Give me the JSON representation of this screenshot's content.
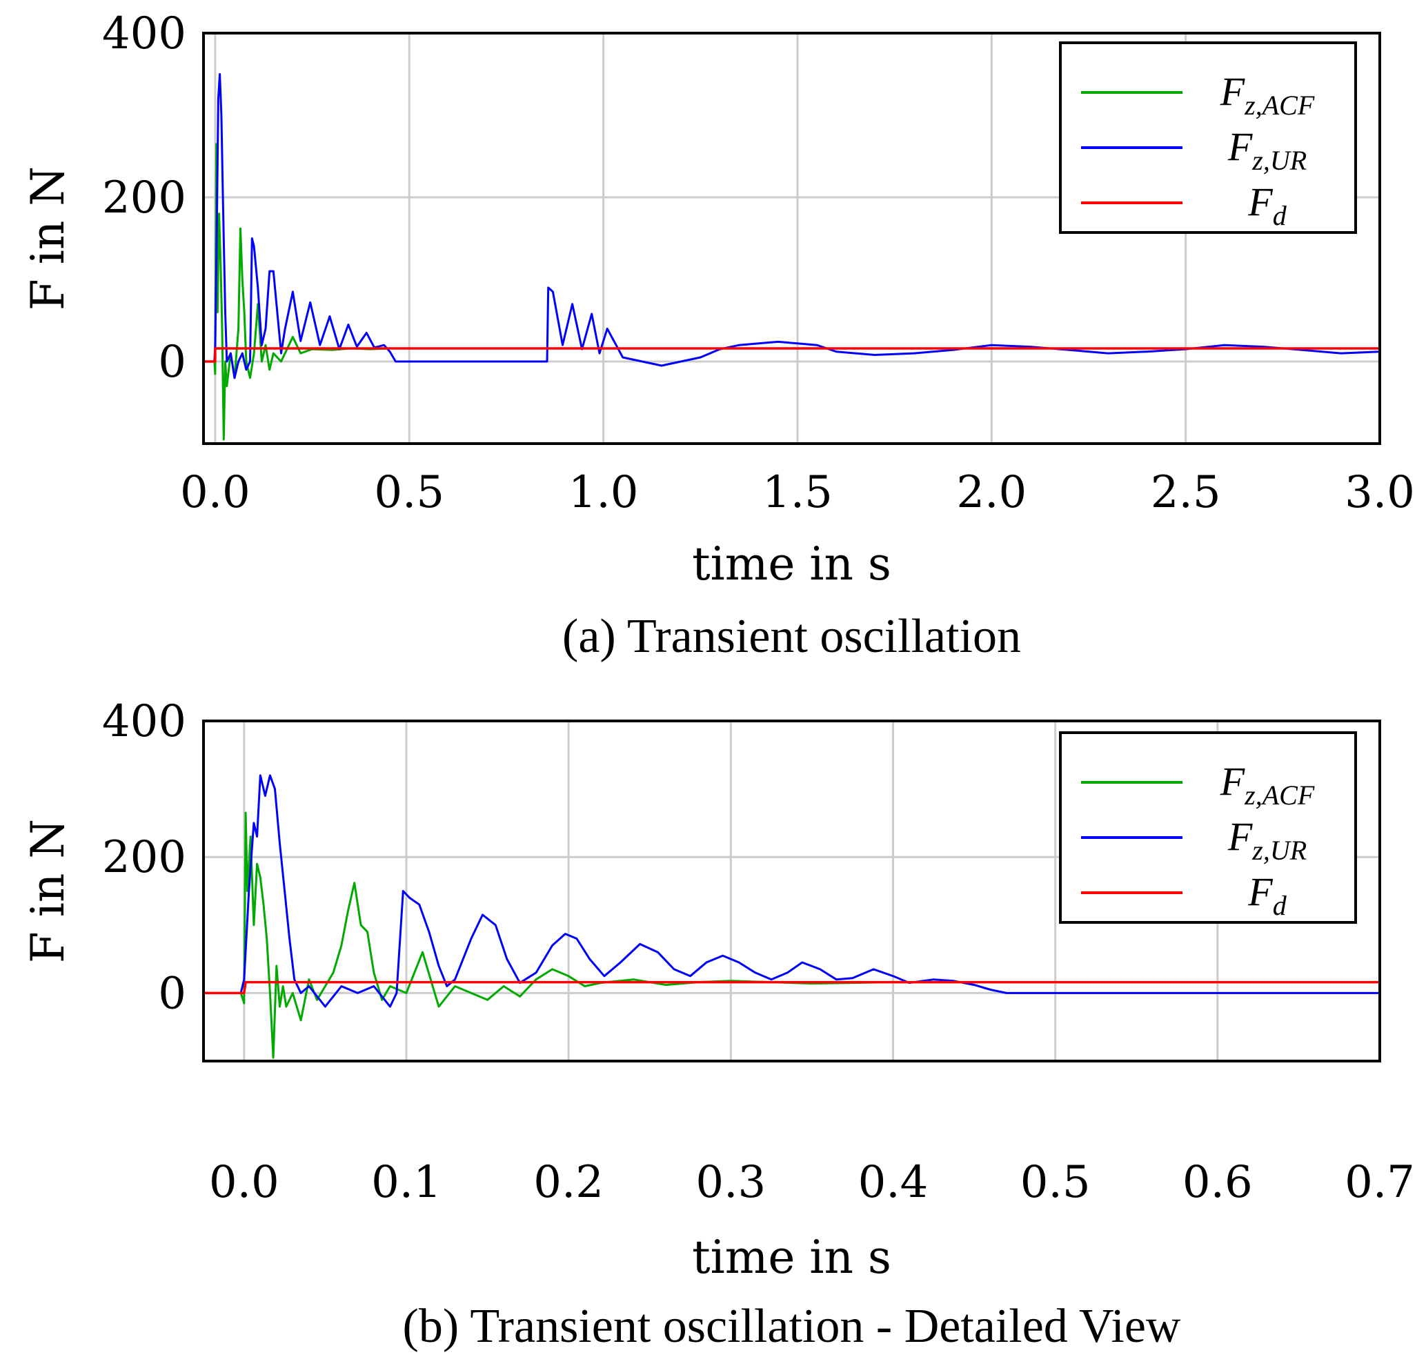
{
  "chart_data": [
    {
      "type": "line",
      "id": "a",
      "caption": "(a) Transient oscillation",
      "xlabel": "time in s",
      "ylabel": "F in N",
      "xlim": [
        -0.03,
        3.0
      ],
      "ylim": [
        -100,
        400
      ],
      "xticks": [
        0.0,
        0.5,
        1.0,
        1.5,
        2.0,
        2.5,
        3.0
      ],
      "xtick_labels": [
        "0.0",
        "0.5",
        "1.0",
        "1.5",
        "2.0",
        "2.5",
        "3.0"
      ],
      "yticks": [
        0,
        200,
        400
      ],
      "ytick_labels": [
        "0",
        "200",
        "400"
      ],
      "grid": true,
      "legend_position": "top-right",
      "series": [
        {
          "name": "F_z,ACF",
          "legend_main": "F",
          "legend_sub": "z,ACF",
          "color": "#00aa00",
          "x": [
            -0.002,
            0.0,
            0.003,
            0.006,
            0.01,
            0.014,
            0.018,
            0.022,
            0.026,
            0.03,
            0.04,
            0.05,
            0.06,
            0.065,
            0.07,
            0.075,
            0.08,
            0.09,
            0.1,
            0.11,
            0.12,
            0.13,
            0.14,
            0.15,
            0.17,
            0.19,
            0.2,
            0.22,
            0.25,
            0.3,
            0.35,
            0.4,
            0.45,
            0.5,
            1.0,
            1.5,
            2.0,
            2.5,
            3.0
          ],
          "y": [
            0,
            -15,
            265,
            60,
            180,
            120,
            40,
            -95,
            0,
            -30,
            10,
            -20,
            40,
            162,
            100,
            60,
            0,
            -20,
            10,
            70,
            0,
            20,
            -10,
            10,
            0,
            20,
            30,
            10,
            15,
            14,
            16,
            15,
            16,
            16,
            16,
            16,
            16,
            16,
            16
          ]
        },
        {
          "name": "F_z,UR",
          "legend_main": "F",
          "legend_sub": "z,UR",
          "color": "#0000ff",
          "x": [
            -0.002,
            0.0,
            0.004,
            0.008,
            0.012,
            0.016,
            0.02,
            0.026,
            0.03,
            0.04,
            0.05,
            0.06,
            0.07,
            0.08,
            0.09,
            0.095,
            0.1,
            0.11,
            0.12,
            0.13,
            0.14,
            0.15,
            0.16,
            0.17,
            0.18,
            0.2,
            0.22,
            0.245,
            0.27,
            0.295,
            0.32,
            0.343,
            0.365,
            0.39,
            0.41,
            0.435,
            0.45,
            0.465,
            0.5,
            0.6,
            0.7,
            0.8,
            0.855,
            0.858,
            0.87,
            0.895,
            0.92,
            0.945,
            0.97,
            0.99,
            1.01,
            1.05,
            1.1,
            1.15,
            1.2,
            1.25,
            1.3,
            1.35,
            1.4,
            1.45,
            1.5,
            1.55,
            1.6,
            1.7,
            1.8,
            1.9,
            2.0,
            2.1,
            2.2,
            2.3,
            2.4,
            2.5,
            2.6,
            2.7,
            2.8,
            2.9,
            3.0
          ],
          "y": [
            0,
            20,
            150,
            320,
            350,
            300,
            200,
            60,
            0,
            10,
            -20,
            0,
            10,
            -10,
            0,
            150,
            140,
            90,
            20,
            40,
            110,
            110,
            60,
            10,
            40,
            85,
            25,
            72,
            20,
            55,
            15,
            45,
            18,
            35,
            17,
            20,
            12,
            0,
            0,
            0,
            0,
            0,
            0,
            90,
            85,
            20,
            70,
            15,
            58,
            10,
            40,
            5,
            0,
            -5,
            0,
            5,
            15,
            20,
            22,
            24,
            22,
            20,
            12,
            8,
            10,
            14,
            20,
            18,
            14,
            10,
            12,
            15,
            20,
            18,
            14,
            10,
            12
          ]
        },
        {
          "name": "F_d",
          "legend_main": "F",
          "legend_sub": "d",
          "color": "#ff0000",
          "x": [
            -0.03,
            0.0,
            0.0,
            3.0
          ],
          "y": [
            0,
            0,
            16,
            16
          ]
        }
      ]
    },
    {
      "type": "line",
      "id": "b",
      "caption": "(b) Transient oscillation - Detailed View",
      "xlabel": "time in s",
      "ylabel": "F in N",
      "xlim": [
        -0.025,
        0.7
      ],
      "ylim": [
        -100,
        400
      ],
      "xticks": [
        0.0,
        0.1,
        0.2,
        0.3,
        0.4,
        0.5,
        0.6,
        0.7
      ],
      "xtick_labels": [
        "0.0",
        "0.1",
        "0.2",
        "0.3",
        "0.4",
        "0.5",
        "0.6",
        "0.7"
      ],
      "yticks": [
        0,
        200,
        400
      ],
      "ytick_labels": [
        "0",
        "200",
        "400"
      ],
      "grid": true,
      "legend_position": "top-right",
      "series": [
        {
          "name": "F_z,ACF",
          "legend_main": "F",
          "legend_sub": "z,ACF",
          "color": "#00aa00",
          "x": [
            -0.002,
            0.0,
            0.001,
            0.002,
            0.004,
            0.006,
            0.008,
            0.01,
            0.012,
            0.014,
            0.016,
            0.018,
            0.02,
            0.022,
            0.024,
            0.026,
            0.03,
            0.035,
            0.04,
            0.045,
            0.05,
            0.055,
            0.06,
            0.064,
            0.068,
            0.072,
            0.076,
            0.08,
            0.085,
            0.09,
            0.1,
            0.11,
            0.12,
            0.13,
            0.14,
            0.15,
            0.16,
            0.17,
            0.18,
            0.19,
            0.2,
            0.21,
            0.22,
            0.24,
            0.26,
            0.28,
            0.3,
            0.35,
            0.4,
            0.45,
            0.5,
            0.6,
            0.7
          ],
          "y": [
            0,
            -15,
            265,
            150,
            230,
            100,
            190,
            170,
            130,
            80,
            0,
            -95,
            40,
            -20,
            10,
            -20,
            0,
            -40,
            20,
            -10,
            10,
            30,
            70,
            120,
            162,
            100,
            90,
            30,
            -10,
            10,
            0,
            60,
            -20,
            10,
            0,
            -10,
            10,
            -5,
            20,
            35,
            25,
            10,
            15,
            20,
            12,
            16,
            18,
            14,
            16,
            16,
            16,
            16,
            16
          ]
        },
        {
          "name": "F_z,UR",
          "legend_main": "F",
          "legend_sub": "z,UR",
          "color": "#0000ff",
          "x": [
            -0.002,
            0.0,
            0.003,
            0.006,
            0.008,
            0.01,
            0.013,
            0.016,
            0.019,
            0.022,
            0.025,
            0.028,
            0.031,
            0.035,
            0.04,
            0.05,
            0.06,
            0.07,
            0.08,
            0.09,
            0.094,
            0.098,
            0.102,
            0.108,
            0.114,
            0.12,
            0.125,
            0.13,
            0.14,
            0.147,
            0.155,
            0.162,
            0.17,
            0.18,
            0.19,
            0.198,
            0.205,
            0.213,
            0.222,
            0.232,
            0.244,
            0.255,
            0.265,
            0.275,
            0.285,
            0.295,
            0.305,
            0.315,
            0.325,
            0.335,
            0.344,
            0.355,
            0.365,
            0.375,
            0.388,
            0.4,
            0.41,
            0.425,
            0.437,
            0.45,
            0.46,
            0.47,
            0.5,
            0.6,
            0.7
          ],
          "y": [
            0,
            20,
            150,
            250,
            230,
            320,
            290,
            320,
            300,
            220,
            150,
            80,
            20,
            0,
            10,
            -20,
            10,
            0,
            10,
            -20,
            0,
            150,
            140,
            130,
            90,
            40,
            10,
            20,
            80,
            115,
            100,
            50,
            15,
            30,
            70,
            87,
            80,
            50,
            25,
            45,
            72,
            60,
            35,
            25,
            45,
            55,
            45,
            30,
            20,
            30,
            45,
            35,
            20,
            22,
            35,
            25,
            15,
            20,
            18,
            12,
            5,
            0,
            0,
            0,
            0
          ]
        },
        {
          "name": "F_d",
          "legend_main": "F",
          "legend_sub": "d",
          "color": "#ff0000",
          "x": [
            -0.025,
            0.0,
            0.001,
            0.7
          ],
          "y": [
            0,
            0,
            16,
            16
          ]
        }
      ]
    }
  ]
}
